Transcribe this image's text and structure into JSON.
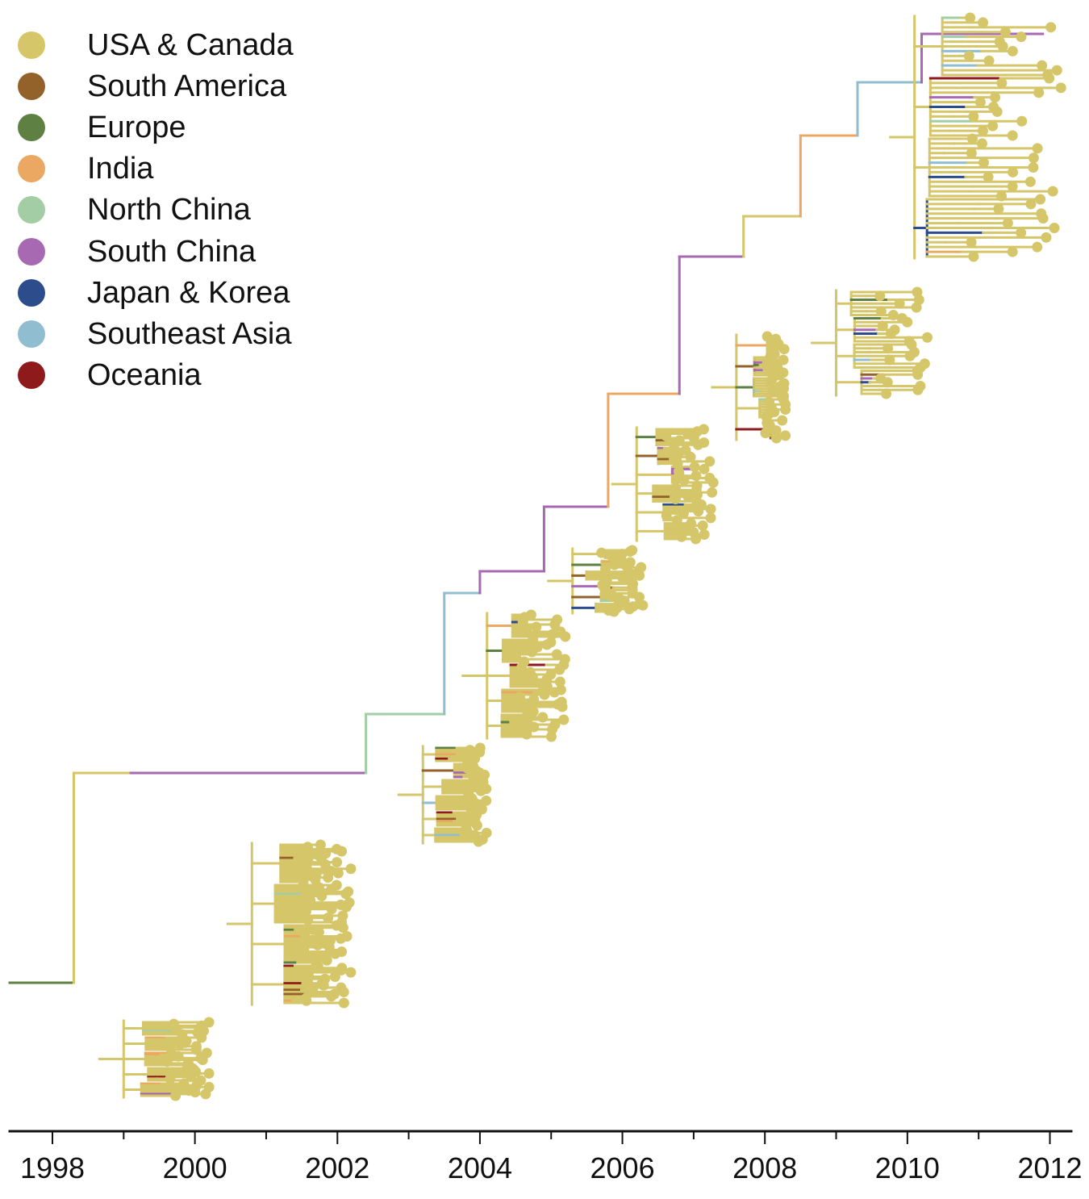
{
  "chart_data": {
    "type": "phylogenetic-tree",
    "xaxis": {
      "labels": [
        "1998",
        "2000",
        "2002",
        "2004",
        "2006",
        "2008",
        "2010",
        "2012"
      ],
      "label_years": [
        1998,
        2000,
        2002,
        2004,
        2006,
        2008,
        2010,
        2012
      ],
      "range": [
        1997.4,
        2012.3
      ],
      "minor_tick_step_years": 1
    },
    "legend": {
      "placement": "top-left",
      "entries": [
        {
          "label": "USA & Canada",
          "color": "#D6C66A"
        },
        {
          "label": "South America",
          "color": "#93622A"
        },
        {
          "label": "Europe",
          "color": "#5F8043"
        },
        {
          "label": "India",
          "color": "#EBA862"
        },
        {
          "label": "North China",
          "color": "#A2CDA5"
        },
        {
          "label": "South China",
          "color": "#A769B2"
        },
        {
          "label": "Japan & Korea",
          "color": "#2D4C8C"
        },
        {
          "label": "Southeast Asia",
          "color": "#91BDD0"
        },
        {
          "label": "Oceania",
          "color": "#8E1A1B"
        }
      ]
    },
    "tip_color": "#D6C66A",
    "trunk": [
      {
        "year": 1997.4,
        "region": "Europe"
      },
      {
        "year": 1998.3,
        "region": "USA & Canada"
      },
      {
        "year": 1999.1,
        "region": "South China"
      },
      {
        "year": 2002.4,
        "region": "North China"
      },
      {
        "year": 2003.5,
        "region": "Southeast Asia"
      },
      {
        "year": 2004.0,
        "region": "South China"
      },
      {
        "year": 2004.9,
        "region": "South China"
      },
      {
        "year": 2005.8,
        "region": "India"
      },
      {
        "year": 2006.8,
        "region": "South China"
      },
      {
        "year": 2007.7,
        "region": "USA & Canada"
      },
      {
        "year": 2008.5,
        "region": "India"
      },
      {
        "year": 2009.3,
        "region": "Southeast Asia"
      },
      {
        "year": 2010.2,
        "region": "South China"
      },
      {
        "year": 2011.9,
        "region": "USA & Canada"
      }
    ],
    "clades": [
      {
        "region": "USA & Canada",
        "root_year": 1999.0,
        "tip_year_min": 1999.6,
        "tip_year_max": 2000.2,
        "tips": 38
      },
      {
        "region": "USA & Canada",
        "root_year": 2000.8,
        "tip_year_min": 2001.5,
        "tip_year_max": 2002.2,
        "tips": 70
      },
      {
        "region": "USA & Canada",
        "root_year": 2003.2,
        "tip_year_min": 2003.8,
        "tip_year_max": 2004.1,
        "tips": 40
      },
      {
        "region": "USA & Canada",
        "root_year": 2004.1,
        "tip_year_min": 2004.5,
        "tip_year_max": 2005.2,
        "tips": 48
      },
      {
        "region": "USA & Canada",
        "root_year": 2005.3,
        "tip_year_min": 2005.7,
        "tip_year_max": 2006.3,
        "tips": 40
      },
      {
        "region": "USA & Canada",
        "root_year": 2006.2,
        "tip_year_min": 2006.6,
        "tip_year_max": 2007.3,
        "tips": 46
      },
      {
        "region": "USA & Canada",
        "root_year": 2007.6,
        "tip_year_min": 2008.0,
        "tip_year_max": 2008.3,
        "tips": 40
      },
      {
        "region": "USA & Canada",
        "root_year": 2009.0,
        "tip_year_min": 2009.6,
        "tip_year_max": 2010.3,
        "tips": 28
      },
      {
        "region": "USA & Canada",
        "root_year": 2010.1,
        "tip_year_min": 2010.8,
        "tip_year_max": 2012.2,
        "tips": 52
      }
    ]
  }
}
